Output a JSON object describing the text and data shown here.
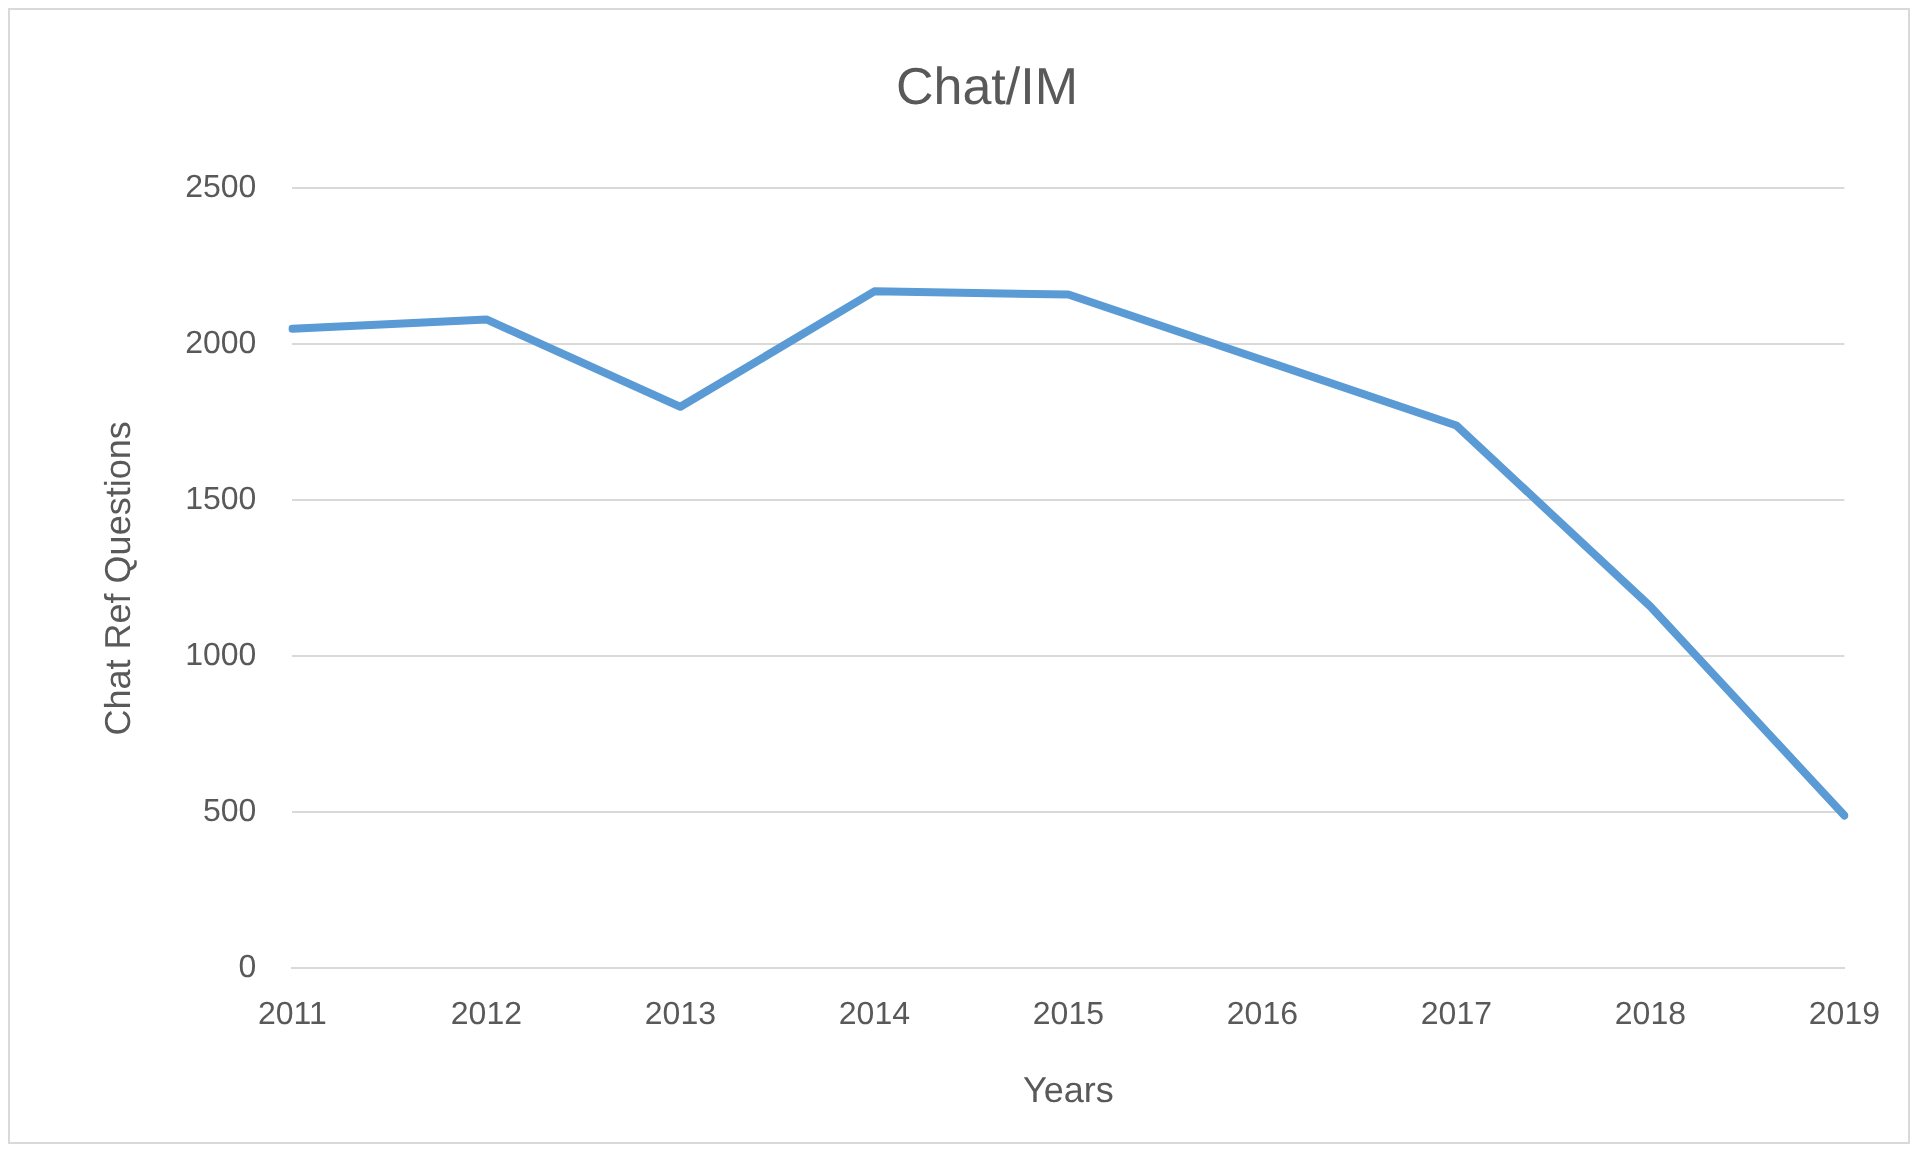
{
  "chart_data": {
    "type": "line",
    "title": "Chat/IM",
    "xlabel": "Years",
    "ylabel": "Chat Ref Questions",
    "categories": [
      "2011",
      "2012",
      "2013",
      "2014",
      "2015",
      "2016",
      "2017",
      "2018",
      "2019"
    ],
    "series": [
      {
        "color": "#5b9bd5",
        "values": [
          2050,
          2080,
          1800,
          2170,
          2160,
          1950,
          1740,
          1160,
          490
        ]
      }
    ],
    "ylim": [
      0,
      2500
    ],
    "yticks": [
      0,
      500,
      1000,
      1500,
      2000,
      2500
    ],
    "grid": "y",
    "legend": false,
    "marker": "none",
    "line_style": "solid"
  }
}
